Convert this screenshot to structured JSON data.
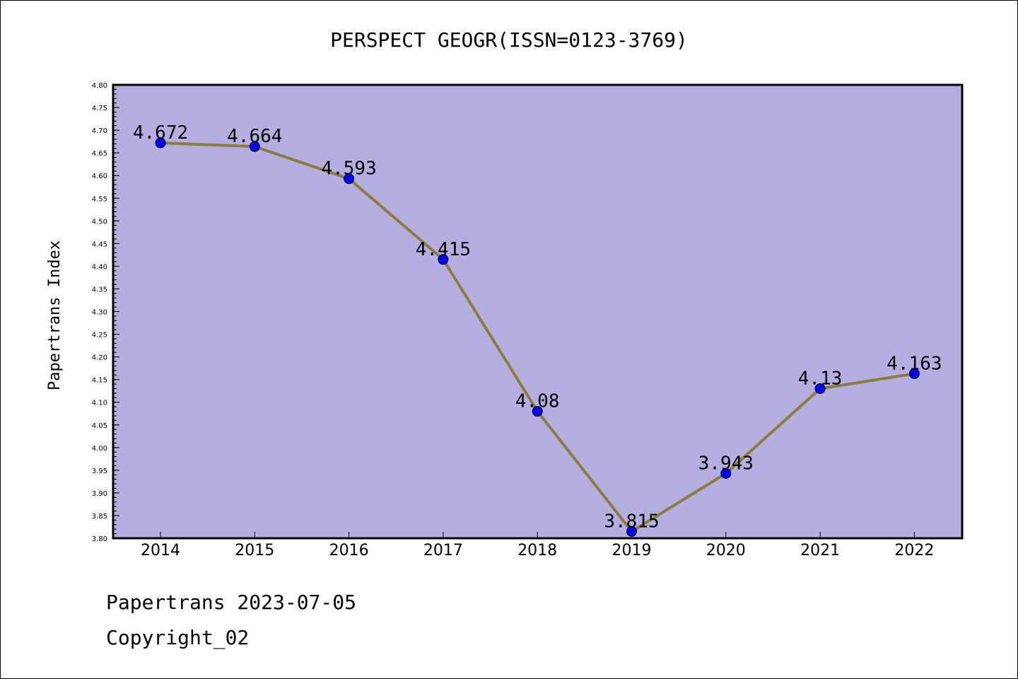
{
  "chart_data": {
    "type": "line",
    "title": "PERSPECT GEOGR(ISSN=0123-3769)",
    "xlabel": "",
    "ylabel": "Papertrans Index",
    "categories": [
      "2014",
      "2015",
      "2016",
      "2017",
      "2018",
      "2019",
      "2020",
      "2021",
      "2022"
    ],
    "series": [
      {
        "values": [
          4.672,
          4.664,
          4.593,
          4.415,
          4.08,
          3.815,
          3.943,
          4.13,
          4.163
        ],
        "data_labels": [
          "4.672",
          "4.664",
          "4.593",
          "4.415",
          "4.08",
          "3.815",
          "3.943",
          "4.13",
          "4.163"
        ],
        "line_color": "#8b7d3a",
        "marker_color": "#0000ff"
      }
    ],
    "ylim": [
      3.8,
      4.8
    ],
    "yticks": [
      "3.80",
      "3.85",
      "3.90",
      "3.95",
      "4.00",
      "4.05",
      "4.10",
      "4.15",
      "4.20",
      "4.25",
      "4.30",
      "4.35",
      "4.40",
      "4.45",
      "4.50",
      "4.55",
      "4.60",
      "4.65",
      "4.70",
      "4.75",
      "4.80"
    ],
    "plot_background": "#b5aee0",
    "grid": false,
    "legend": "none"
  },
  "footer": {
    "line1": "Papertrans 2023-07-05",
    "line2": "Copyright_02"
  }
}
